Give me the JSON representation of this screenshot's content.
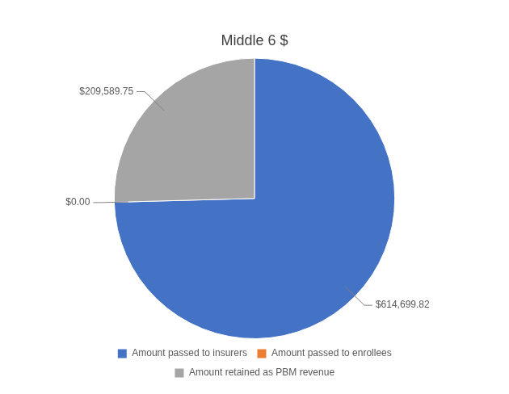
{
  "chart_data": {
    "type": "pie",
    "title": "Middle 6 $",
    "categories": [
      "Amount passed to insurers",
      "Amount passed to enrollees",
      "Amount retained as PBM revenue"
    ],
    "values": [
      614699.82,
      0.0,
      209589.75
    ],
    "value_labels": [
      "$614,699.82",
      "$0.00",
      "$209,589.75"
    ],
    "colors": [
      "#4472C4",
      "#ED7D31",
      "#A5A5A5"
    ],
    "data_labels": true,
    "legend": "bottom"
  }
}
